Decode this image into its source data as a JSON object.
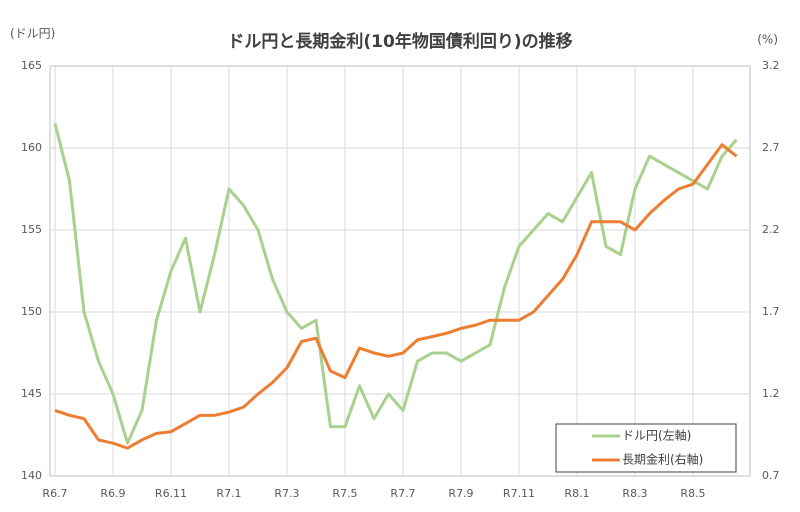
{
  "chart_data": {
    "type": "line",
    "title": "ドル円と長期金利(10年物国債利回り)の推移",
    "y_label": "(ドル円)",
    "y2_label": "(%)",
    "categories": [
      "R6.7",
      null,
      null,
      null,
      "R6.9",
      null,
      null,
      null,
      "R6.11",
      null,
      null,
      null,
      "R7.1",
      null,
      null,
      null,
      "R7.3",
      null,
      null,
      null,
      "R7.5",
      null,
      null,
      null,
      "R7.7",
      null,
      null,
      null,
      "R7.9",
      null,
      null,
      null,
      "R7.11",
      null,
      null,
      null,
      "R8.1",
      null,
      null,
      null,
      "R8.3",
      null,
      null,
      null,
      "R8.5",
      null,
      null,
      null
    ],
    "ylim": [
      140,
      165
    ],
    "yticks": [
      140,
      145,
      150,
      155,
      160,
      165
    ],
    "y2lim": [
      0.7,
      3.2
    ],
    "y2ticks": [
      0.7,
      1.2,
      1.7,
      2.2,
      2.7,
      3.2
    ],
    "grid": true,
    "legend": "lower right",
    "series": [
      {
        "name": "ドル円(左軸)",
        "color": "#a9d18e",
        "values": [
          161.5,
          158,
          150,
          147,
          145,
          142,
          144,
          149.5,
          152.5,
          154.5,
          150,
          153.5,
          157.5,
          156.5,
          155,
          152,
          150,
          149,
          149.5,
          143,
          143,
          145.5,
          143.5,
          145,
          144,
          147,
          147.5,
          147.5,
          147,
          147.5,
          148,
          151.5,
          154,
          155,
          156,
          155.5,
          157,
          158.5,
          154,
          153.5,
          157.5,
          159.5,
          159,
          158.5,
          158,
          157.5,
          159.5,
          160.5
        ]
      },
      {
        "name": "長期金利(右軸)",
        "color": "#ed7d31",
        "axis": "y2",
        "values": [
          1.1,
          1.07,
          1.05,
          0.92,
          0.9,
          0.87,
          0.92,
          0.96,
          0.97,
          1.02,
          1.07,
          1.07,
          1.09,
          1.12,
          1.2,
          1.27,
          1.36,
          1.52,
          1.54,
          1.34,
          1.3,
          1.48,
          1.45,
          1.43,
          1.45,
          1.53,
          1.55,
          1.57,
          1.6,
          1.62,
          1.65,
          1.65,
          1.65,
          1.7,
          1.8,
          1.9,
          2.05,
          2.25,
          2.25,
          2.25,
          2.2,
          2.3,
          2.38,
          2.45,
          2.48,
          2.6,
          2.72,
          2.65
        ]
      }
    ]
  }
}
